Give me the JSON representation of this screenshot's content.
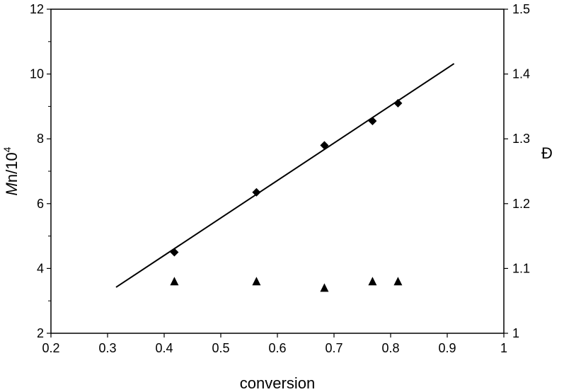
{
  "chart_data": {
    "type": "scatter",
    "title": "",
    "xlabel": "conversion",
    "ylabel": {
      "italic": "M",
      "rest": "n/10",
      "superscript": "4"
    },
    "y2label": "Đ",
    "xlim": [
      0.2,
      1.0
    ],
    "ylim": [
      2,
      12
    ],
    "y2lim": [
      1.0,
      1.5
    ],
    "x_ticks": [
      "0.2",
      "0.3",
      "0.4",
      "0.5",
      "0.6",
      "0.7",
      "0.8",
      "0.9",
      "1"
    ],
    "y_ticks": [
      "2",
      "4",
      "6",
      "8",
      "10",
      "12"
    ],
    "y2_ticks": [
      "1",
      "1.1",
      "1.2",
      "1.3",
      "1.4",
      "1.5"
    ],
    "grid": false,
    "series": [
      {
        "axis": "left",
        "marker": "diamond",
        "x": [
          0.418,
          0.563,
          0.683,
          0.768,
          0.813
        ],
        "y": [
          4.5,
          6.35,
          7.8,
          8.55,
          9.1
        ]
      },
      {
        "axis": "right",
        "marker": "triangle",
        "x": [
          0.418,
          0.563,
          0.683,
          0.768,
          0.813
        ],
        "y": [
          1.08,
          1.08,
          1.07,
          1.08,
          1.08
        ]
      }
    ],
    "fit_line": {
      "axis": "left",
      "x": [
        0.315,
        0.912
      ],
      "y": [
        3.42,
        10.32
      ]
    },
    "color": "#000000"
  }
}
